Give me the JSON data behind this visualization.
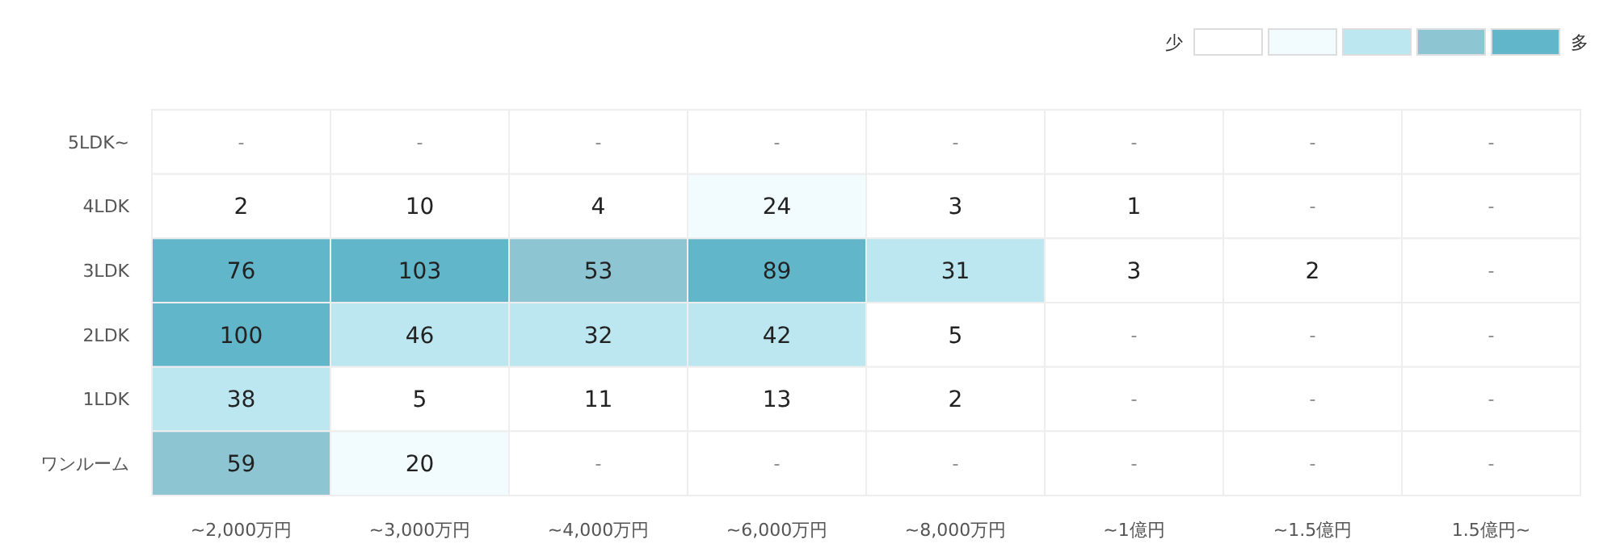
{
  "chart_data": {
    "type": "heatmap",
    "categories": [
      "~2,000万円",
      "~3,000万円",
      "~4,000万円",
      "~6,000万円",
      "~8,000万円",
      "~1億円",
      "~1.5億円",
      "1.5億円~"
    ],
    "y_categories": [
      "5LDK~",
      "4LDK",
      "3LDK",
      "2LDK",
      "1LDK",
      "ワンルーム"
    ],
    "cells": [
      [
        null,
        null,
        null,
        null,
        null,
        null,
        null,
        null
      ],
      [
        2,
        10,
        4,
        24,
        3,
        1,
        null,
        null
      ],
      [
        76,
        103,
        53,
        89,
        31,
        3,
        2,
        null
      ],
      [
        100,
        46,
        32,
        42,
        5,
        null,
        null,
        null
      ],
      [
        38,
        5,
        11,
        13,
        2,
        null,
        null,
        null
      ],
      [
        59,
        20,
        null,
        null,
        null,
        null,
        null,
        null
      ]
    ],
    "cell_labels": [
      [
        "-",
        "-",
        "-",
        "-",
        "-",
        "-",
        "-",
        "-"
      ],
      [
        "2",
        "10",
        "4",
        "24",
        "3",
        "1",
        "-",
        "-"
      ],
      [
        "76",
        "103",
        "53",
        "89",
        "31",
        "3",
        "2",
        "-"
      ],
      [
        "100",
        "46",
        "32",
        "42",
        "5",
        "-",
        "-",
        "-"
      ],
      [
        "38",
        "5",
        "11",
        "13",
        "2",
        "-",
        "-",
        "-"
      ],
      [
        "59",
        "20",
        "-",
        "-",
        "-",
        "-",
        "-",
        "-"
      ]
    ],
    "colors": [
      "#ffffff",
      "#ffffff",
      "#ffffff",
      "#ffffff",
      "#ffffff",
      "#ffffff",
      "#ffffff",
      "#ffffff",
      "#ffffff",
      "#ffffff",
      "#ffffff",
      "#f2fbfd",
      "#ffffff",
      "#ffffff",
      "#ffffff",
      "#ffffff",
      "#62b6ca",
      "#62b6ca",
      "#8dc5d2",
      "#62b6ca",
      "#bce7f0",
      "#ffffff",
      "#ffffff",
      "#ffffff",
      "#62b6ca",
      "#bce7f0",
      "#bce7f0",
      "#bce7f0",
      "#ffffff",
      "#ffffff",
      "#ffffff",
      "#ffffff",
      "#bce7f0",
      "#ffffff",
      "#ffffff",
      "#ffffff",
      "#ffffff",
      "#ffffff",
      "#ffffff",
      "#ffffff",
      "#8dc5d2",
      "#f2fbfd",
      "#ffffff",
      "#ffffff",
      "#ffffff",
      "#ffffff",
      "#ffffff",
      "#ffffff"
    ],
    "annotations": [
      "少",
      "多"
    ]
  }
}
